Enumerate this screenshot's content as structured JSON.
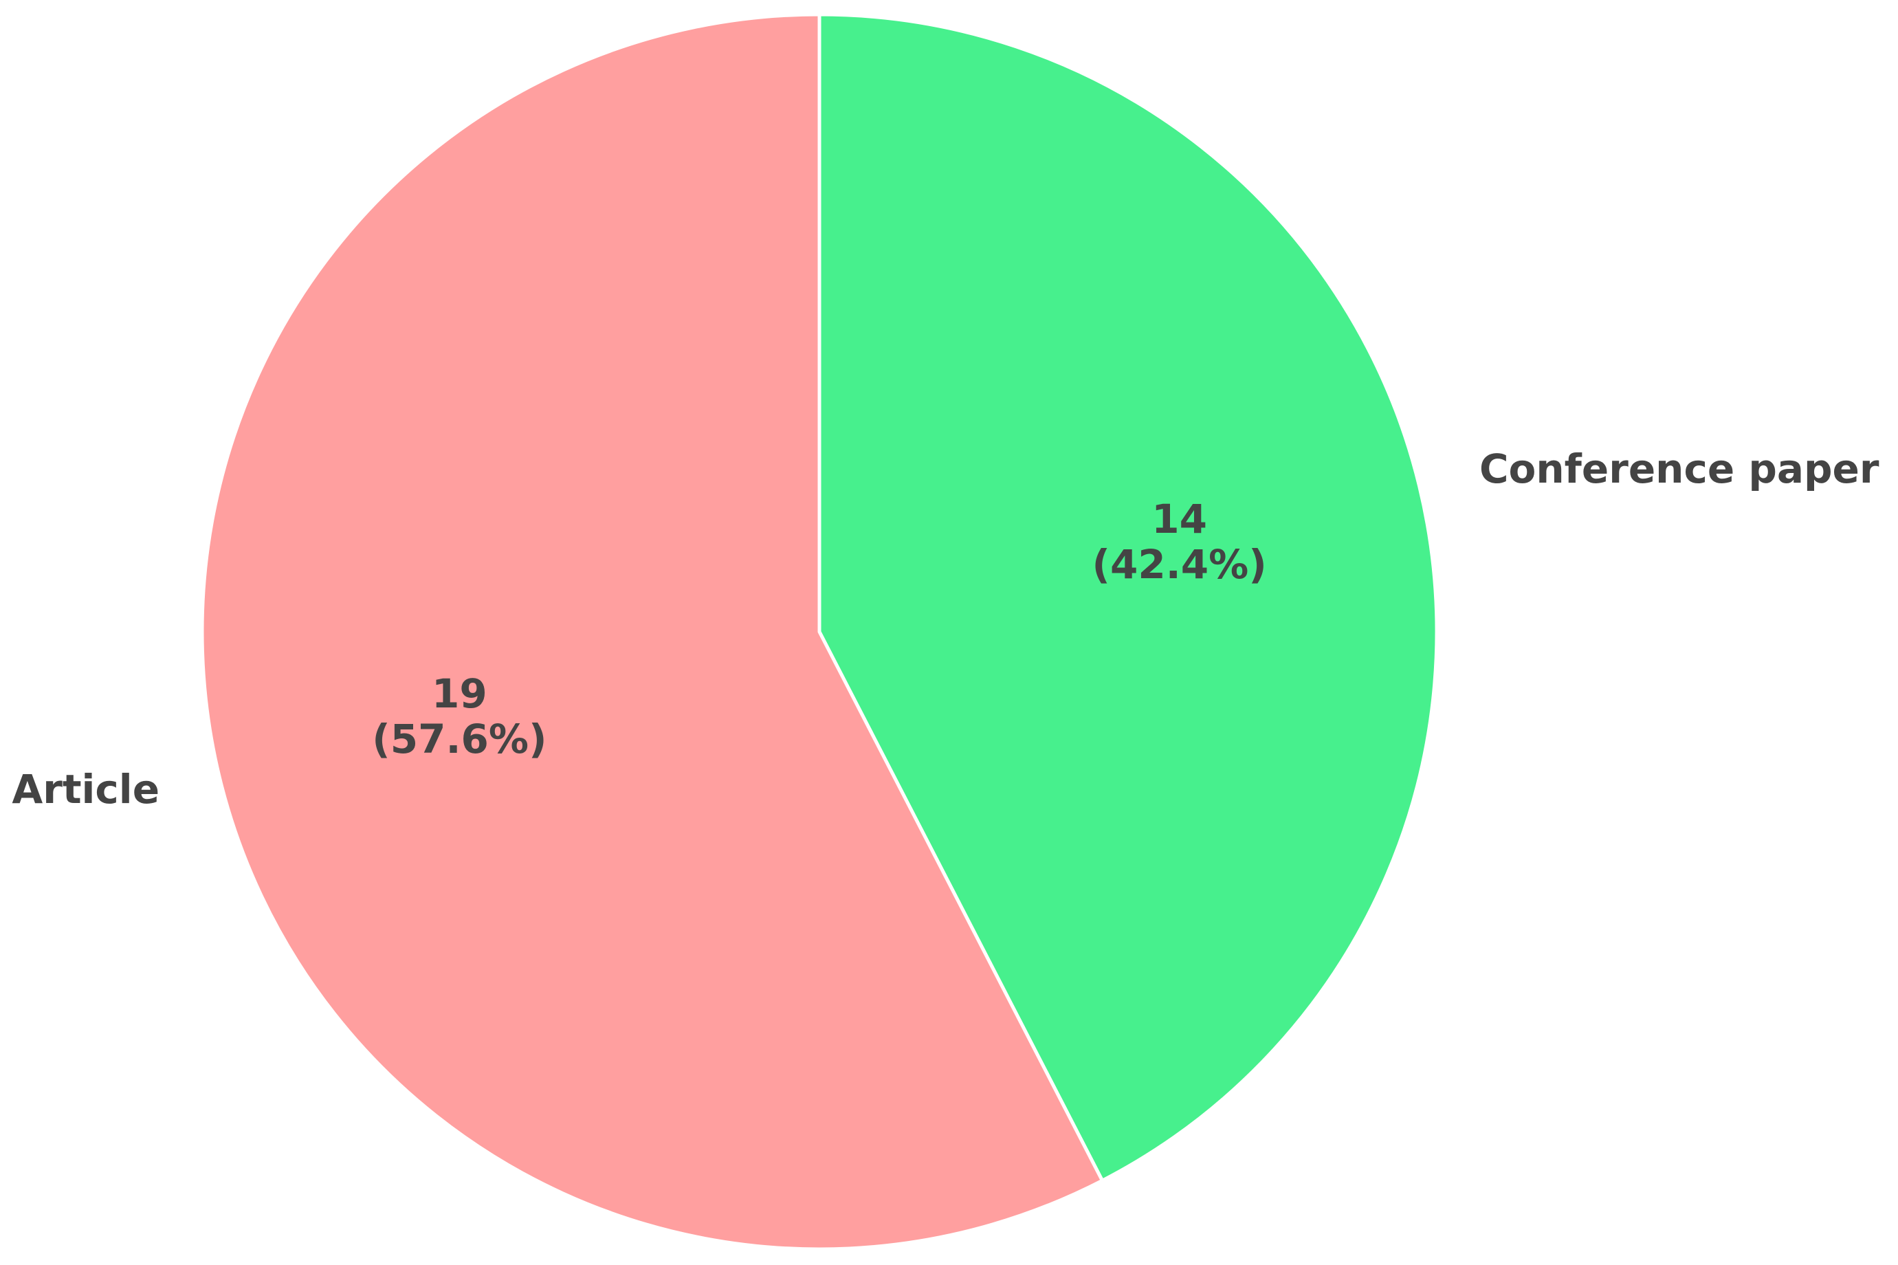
{
  "chart_data": {
    "type": "pie",
    "categories": [
      "Conference paper",
      "Article"
    ],
    "values": [
      14,
      19
    ],
    "percent_labels": [
      "(42.4%)",
      "(57.6%)"
    ],
    "colors": [
      "#47f08d",
      "#ff9f9f"
    ]
  }
}
